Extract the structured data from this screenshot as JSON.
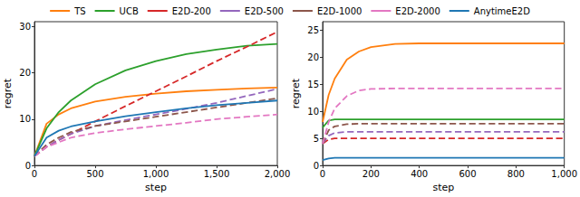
{
  "chart_data": [
    {
      "type": "line",
      "x_label": "step",
      "y_label": "regret",
      "legend": "top",
      "grid": false,
      "x": [
        0,
        100,
        200,
        300,
        500,
        750,
        1000,
        1250,
        1500,
        1750,
        2000
      ],
      "xlim": [
        0,
        2000
      ],
      "xticks": [
        0,
        500,
        1000,
        1500,
        2000
      ],
      "ylim": [
        0,
        31
      ],
      "yticks": [
        0,
        10,
        20,
        30
      ],
      "series": [
        {
          "name": "TS",
          "color": "#ff7f0e",
          "line_style": "solid",
          "values": [
            2,
            9,
            11,
            12.3,
            13.8,
            14.8,
            15.5,
            16,
            16.3,
            16.6,
            16.8
          ]
        },
        {
          "name": "UCB",
          "color": "#2ca02c",
          "line_style": "solid",
          "values": [
            2,
            8,
            11.5,
            14,
            17.5,
            20.5,
            22.5,
            24,
            25,
            25.8,
            26.2
          ]
        },
        {
          "name": "E2D-200",
          "color": "#d62728",
          "line_style": "dashed",
          "values": [
            2,
            4,
            5.5,
            6.8,
            9.5,
            12.8,
            16,
            19.2,
            22.5,
            25.6,
            28.8
          ]
        },
        {
          "name": "E2D-500",
          "color": "#9467bd",
          "line_style": "dashed",
          "values": [
            2,
            4,
            5.5,
            6.8,
            8.5,
            9.8,
            11,
            12.2,
            13.5,
            15,
            16.5
          ]
        },
        {
          "name": "E2D-1000",
          "color": "#8c564b",
          "line_style": "dashed",
          "values": [
            2,
            4.5,
            6,
            7.2,
            8.5,
            9.5,
            10.5,
            11.5,
            12.5,
            13.5,
            14.5
          ]
        },
        {
          "name": "E2D-2000",
          "color": "#e377c2",
          "line_style": "dashed",
          "values": [
            2,
            4,
            5,
            6,
            7,
            7.8,
            8.5,
            9.2,
            10,
            10.5,
            11
          ]
        },
        {
          "name": "AnytimeE2D",
          "color": "#1f77b4",
          "line_style": "solid",
          "values": [
            2,
            6,
            7.5,
            8.4,
            9.5,
            10.6,
            11.5,
            12.3,
            13,
            13.5,
            14
          ]
        }
      ]
    },
    {
      "type": "line",
      "x_label": "step",
      "y_label": "regret",
      "grid": false,
      "x": [
        0,
        25,
        50,
        100,
        150,
        200,
        300,
        400,
        600,
        800,
        1000
      ],
      "xlim": [
        0,
        1000
      ],
      "xticks": [
        0,
        200,
        400,
        600,
        800,
        1000
      ],
      "ylim": [
        0,
        26.5
      ],
      "yticks": [
        0,
        5,
        10,
        15,
        20,
        25
      ],
      "series": [
        {
          "name": "TS",
          "color": "#ff7f0e",
          "line_style": "solid",
          "values": [
            8,
            13,
            16,
            19.5,
            21,
            21.8,
            22.4,
            22.5,
            22.5,
            22.5,
            22.5
          ]
        },
        {
          "name": "UCB",
          "color": "#2ca02c",
          "line_style": "solid",
          "values": [
            7,
            8.3,
            8.5,
            8.5,
            8.5,
            8.5,
            8.5,
            8.5,
            8.5,
            8.5,
            8.5
          ]
        },
        {
          "name": "E2D-200",
          "color": "#d62728",
          "line_style": "dashed",
          "values": [
            4,
            4.8,
            5,
            5,
            5,
            5,
            5,
            5,
            5,
            5,
            5
          ]
        },
        {
          "name": "E2D-500",
          "color": "#9467bd",
          "line_style": "dashed",
          "values": [
            4,
            5.5,
            6,
            6.2,
            6.2,
            6.2,
            6.2,
            6.2,
            6.2,
            6.2,
            6.2
          ]
        },
        {
          "name": "E2D-1000",
          "color": "#8c564b",
          "line_style": "dashed",
          "values": [
            4,
            6.5,
            7.2,
            7.6,
            7.7,
            7.7,
            7.7,
            7.7,
            7.7,
            7.7,
            7.7
          ]
        },
        {
          "name": "E2D-2000",
          "color": "#e377c2",
          "line_style": "dashed",
          "values": [
            4,
            8,
            10.5,
            12.8,
            13.8,
            14.1,
            14.2,
            14.2,
            14.2,
            14.2,
            14.2
          ]
        },
        {
          "name": "AnytimeE2D",
          "color": "#1f77b4",
          "line_style": "solid",
          "values": [
            1,
            1.3,
            1.4,
            1.4,
            1.4,
            1.4,
            1.4,
            1.4,
            1.4,
            1.4,
            1.4
          ]
        }
      ]
    }
  ]
}
